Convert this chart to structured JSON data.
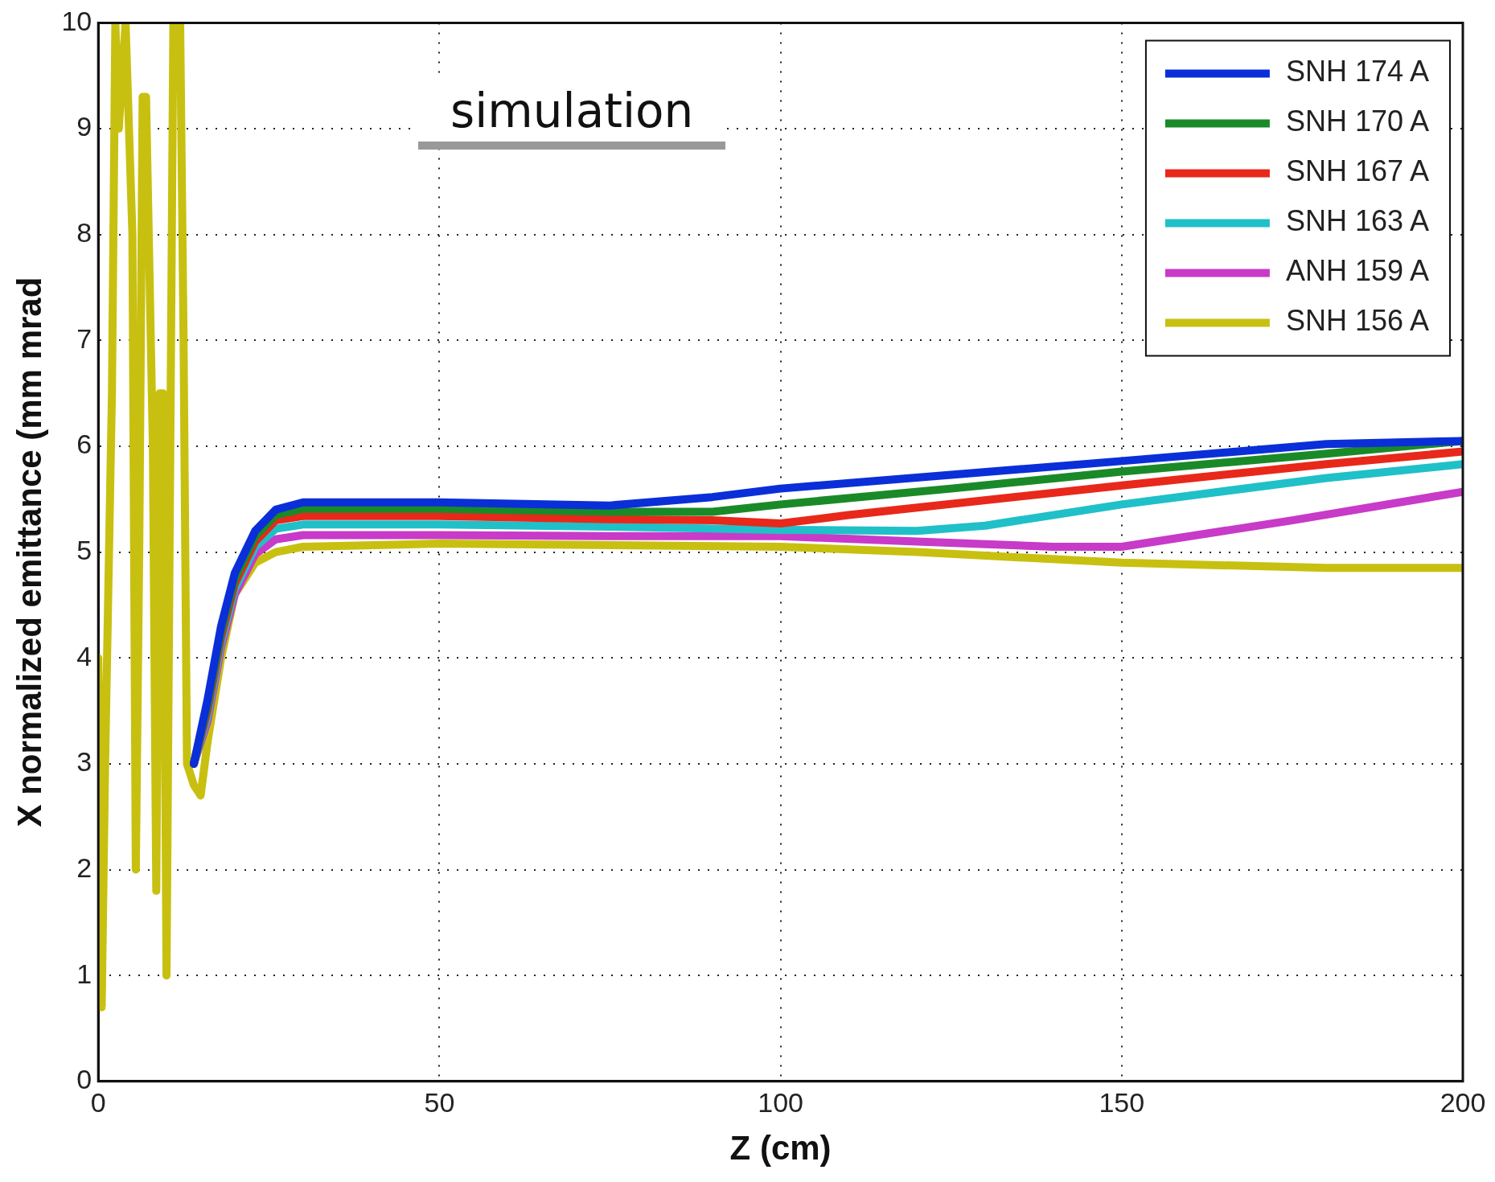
{
  "chart_data": {
    "type": "line",
    "xlabel": "Z (cm)",
    "ylabel": "X normalized emittance (mm mrad",
    "xlim": [
      0,
      200
    ],
    "ylim": [
      0,
      10
    ],
    "xticks": [
      0,
      50,
      100,
      150,
      200
    ],
    "yticks": [
      0,
      1,
      2,
      3,
      4,
      5,
      6,
      7,
      8,
      9,
      10
    ],
    "grid": true,
    "legend": "top right",
    "marker": "none",
    "line_style": "solid",
    "annotations": [
      "simulation"
    ],
    "series": [
      {
        "name": "SNH 174 A",
        "color": "#0a2fd8",
        "x": [
          14,
          16,
          18,
          20,
          23,
          26,
          30,
          50,
          75,
          90,
          100,
          125,
          150,
          180,
          200
        ],
        "values": [
          3.0,
          3.6,
          4.3,
          4.8,
          5.2,
          5.4,
          5.47,
          5.47,
          5.44,
          5.52,
          5.6,
          5.73,
          5.86,
          6.02,
          6.05
        ]
      },
      {
        "name": "SNH 170 A",
        "color": "#1a8a28",
        "x": [
          14,
          16,
          18,
          20,
          23,
          26,
          30,
          50,
          75,
          90,
          100,
          125,
          150,
          180,
          200
        ],
        "values": [
          3.0,
          3.55,
          4.25,
          4.75,
          5.15,
          5.35,
          5.41,
          5.41,
          5.38,
          5.38,
          5.45,
          5.6,
          5.76,
          5.93,
          6.05
        ]
      },
      {
        "name": "SNH 167 A",
        "color": "#e8281a",
        "x": [
          14,
          16,
          18,
          20,
          23,
          26,
          30,
          50,
          75,
          90,
          100,
          110,
          150,
          180,
          200
        ],
        "values": [
          3.0,
          3.5,
          4.2,
          4.7,
          5.1,
          5.3,
          5.34,
          5.34,
          5.31,
          5.3,
          5.27,
          5.35,
          5.63,
          5.83,
          5.95
        ]
      },
      {
        "name": "SNH 163 A",
        "color": "#20c0c8",
        "x": [
          14,
          16,
          18,
          20,
          23,
          26,
          30,
          50,
          75,
          100,
          120,
          130,
          150,
          180,
          200
        ],
        "values": [
          3.0,
          3.45,
          4.15,
          4.65,
          5.05,
          5.22,
          5.26,
          5.26,
          5.24,
          5.21,
          5.2,
          5.25,
          5.45,
          5.7,
          5.83
        ]
      },
      {
        "name": "ANH 159 A",
        "color": "#c83ac8",
        "x": [
          14,
          16,
          18,
          20,
          23,
          26,
          30,
          50,
          75,
          100,
          120,
          140,
          150,
          175,
          200
        ],
        "values": [
          3.0,
          3.4,
          4.1,
          4.6,
          4.98,
          5.12,
          5.16,
          5.16,
          5.15,
          5.15,
          5.1,
          5.05,
          5.05,
          5.3,
          5.57
        ]
      },
      {
        "name": "SNH 156 A",
        "color": "#c8c010",
        "x": [
          0,
          0.5,
          1,
          2,
          2.5,
          3,
          4,
          5,
          5.5,
          6,
          6.5,
          7,
          8,
          8.5,
          9,
          9.5,
          10,
          11,
          12,
          12.5,
          13,
          14,
          15,
          16,
          18,
          20,
          23,
          26,
          30,
          50,
          100,
          120,
          150,
          180,
          200
        ],
        "values": [
          4.0,
          0.7,
          3.0,
          6.5,
          10,
          9.0,
          10,
          8.0,
          2.0,
          5.0,
          9.3,
          9.3,
          6.0,
          1.8,
          6.5,
          6.5,
          1.0,
          10,
          10,
          7.0,
          3.0,
          2.8,
          2.7,
          3.2,
          4.0,
          4.6,
          4.9,
          5.0,
          5.05,
          5.08,
          5.05,
          5.0,
          4.9,
          4.85,
          4.85
        ]
      }
    ]
  }
}
